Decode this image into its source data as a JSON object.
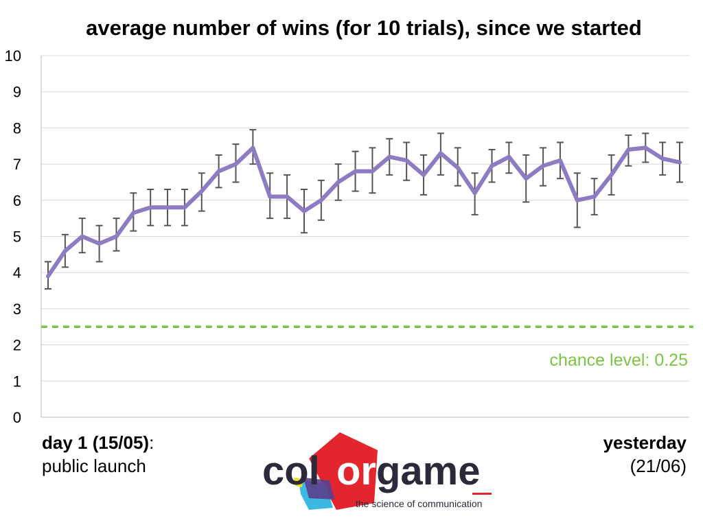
{
  "chart_data": {
    "type": "line",
    "title": "average number of wins (for 10 trials), since we started",
    "ylim": [
      0,
      10
    ],
    "yticks": [
      0,
      1,
      2,
      3,
      4,
      5,
      6,
      7,
      8,
      9,
      10
    ],
    "grid": true,
    "series": [
      {
        "color": "#8E7CC3",
        "values": [
          3.9,
          4.6,
          5.0,
          4.8,
          5.0,
          5.65,
          5.8,
          5.8,
          5.8,
          6.25,
          6.8,
          7.0,
          7.45,
          6.1,
          6.1,
          5.7,
          6.0,
          6.5,
          6.8,
          6.8,
          7.2,
          7.1,
          6.7,
          7.3,
          6.9,
          6.2,
          6.95,
          7.2,
          6.6,
          6.95,
          7.1,
          6.0,
          6.1,
          6.7,
          7.4,
          7.45,
          7.15,
          7.05
        ],
        "error_low": [
          3.55,
          4.15,
          4.55,
          4.3,
          4.6,
          5.15,
          5.3,
          5.3,
          5.3,
          5.7,
          6.35,
          6.5,
          7.0,
          5.5,
          5.5,
          5.1,
          5.45,
          6.0,
          6.25,
          6.2,
          6.7,
          6.55,
          6.15,
          6.7,
          6.4,
          5.6,
          6.5,
          6.75,
          5.95,
          6.4,
          6.6,
          5.25,
          5.6,
          6.15,
          6.95,
          7.05,
          6.7,
          6.5
        ],
        "error_high": [
          4.3,
          5.05,
          5.5,
          5.3,
          5.5,
          6.2,
          6.3,
          6.3,
          6.3,
          6.75,
          7.25,
          7.55,
          7.95,
          6.75,
          6.7,
          6.3,
          6.55,
          7.0,
          7.35,
          7.45,
          7.7,
          7.6,
          7.25,
          7.85,
          7.45,
          6.75,
          7.4,
          7.6,
          7.25,
          7.45,
          7.6,
          6.75,
          6.6,
          7.25,
          7.8,
          7.85,
          7.6,
          7.6
        ]
      }
    ],
    "reference_line": {
      "value": 2.5,
      "color": "#7CC444",
      "label": "chance level: 0.25"
    }
  },
  "footer": {
    "left_bold": "day 1 (15/05)",
    "left_colon": ":",
    "left_sub": "public launch",
    "right_bold": "yesterday",
    "right_sub": "(21/06)"
  },
  "logo": {
    "word_left": "col",
    "word_right": "or",
    "word_game": "game",
    "subtitle": "the science of communication"
  },
  "colors": {
    "line": "#8E7CC3",
    "error_bar": "#555555",
    "grid": "#d8d8d8",
    "chance": "#7CC444",
    "logo_red": "#E3262D",
    "logo_dark": "#2B2A3A"
  }
}
